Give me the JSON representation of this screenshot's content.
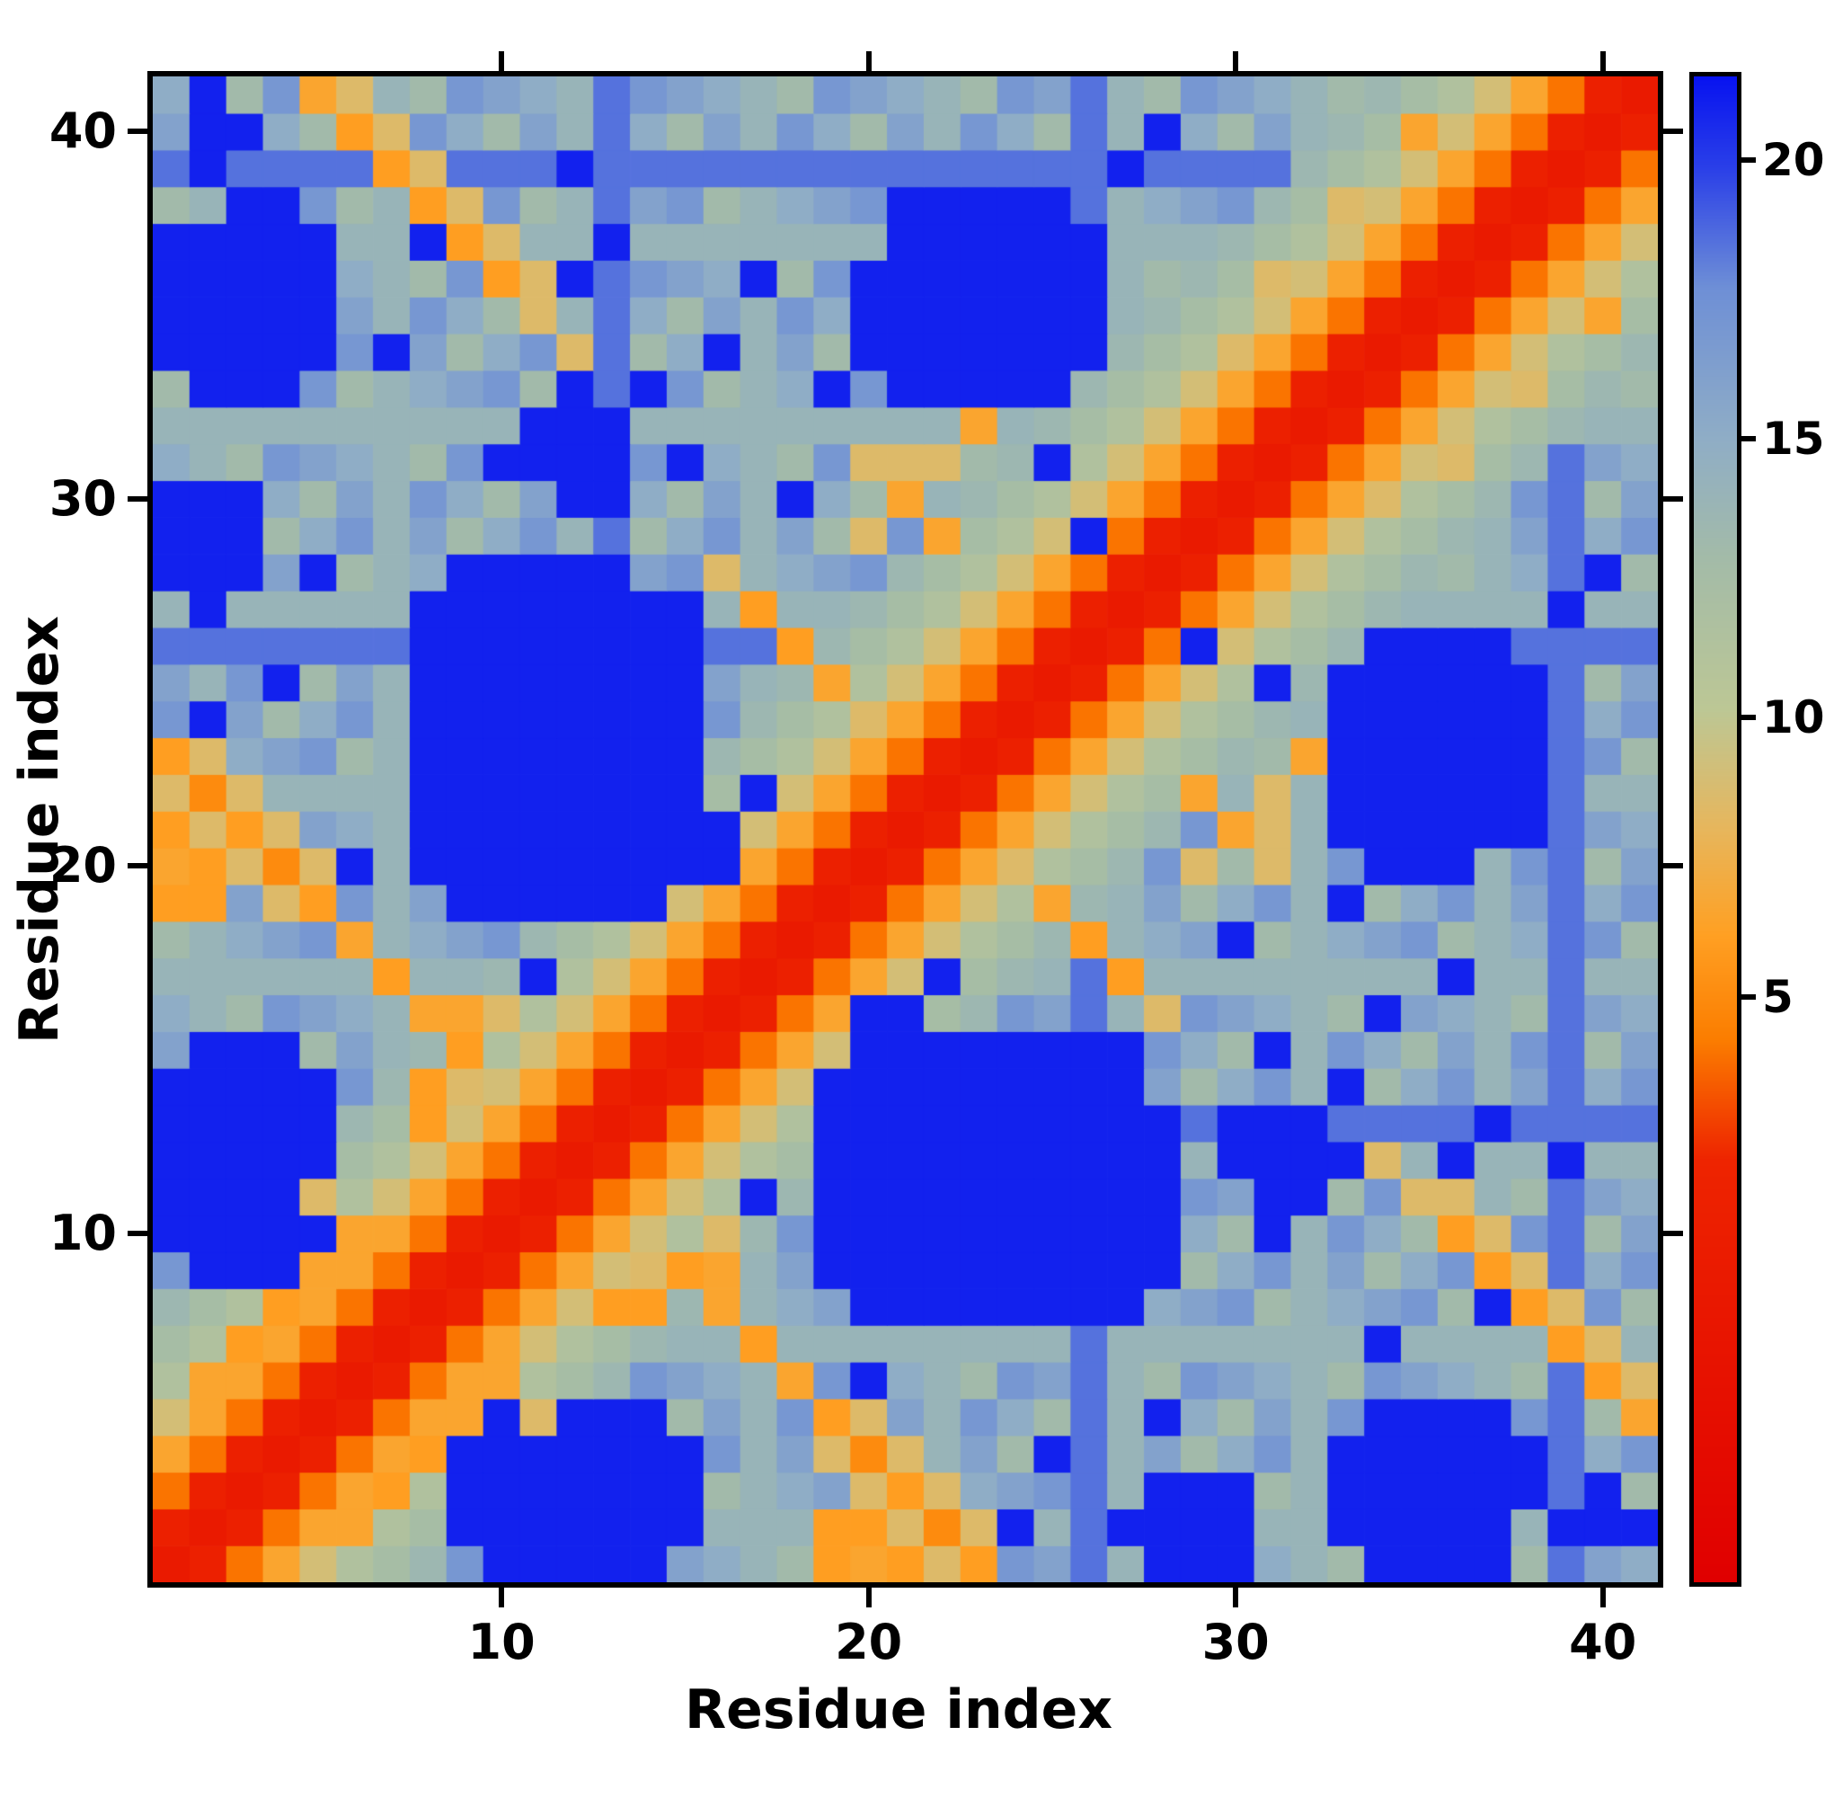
{
  "figure": {
    "background": "#ffffff"
  },
  "chart_data": {
    "type": "heatmap",
    "title": "",
    "xlabel": "Residue index",
    "ylabel": "Residue index",
    "n_residues": 41,
    "x_ticks": [
      10,
      20,
      30,
      40
    ],
    "y_ticks": [
      10,
      20,
      30,
      40
    ],
    "colorbar": {
      "ticks": [
        5,
        10,
        15,
        20
      ],
      "vmin": -5.5,
      "vmax": 21.5,
      "orientation": "vertical",
      "position": "right"
    },
    "colormap_stops": [
      [
        0.0,
        "#e00000"
      ],
      [
        0.28,
        "#ee2400"
      ],
      [
        0.36,
        "#fb7d00"
      ],
      [
        0.43,
        "#ffa023"
      ],
      [
        0.5,
        "#e7b65c"
      ],
      [
        0.58,
        "#bcc795"
      ],
      [
        0.68,
        "#a3bba8"
      ],
      [
        0.76,
        "#8fadc6"
      ],
      [
        0.86,
        "#6e8fd6"
      ],
      [
        0.94,
        "#2a3fe8"
      ],
      [
        1.0,
        "#0813f0"
      ]
    ],
    "matrix_spec": {
      "n": 41,
      "cap_value": 21,
      "far_value": 15,
      "base_by_separation": [
        0,
        1.2,
        4,
        6.5,
        9,
        11.5,
        12.5,
        13.5
      ],
      "noise": {
        "mod": 5,
        "offset": -2,
        "shift": 3
      },
      "light_blue_mod": 13,
      "light_blue_value": 18.5,
      "blue_blobs": [
        [
          9,
          15,
          1,
          5
        ],
        [
          8,
          15,
          19,
          28
        ],
        [
          1,
          5,
          33,
          38
        ],
        [
          33,
          38,
          20,
          26
        ],
        [
          39,
          41,
          1,
          3
        ],
        [
          27,
          31,
          1,
          3
        ],
        [
          30,
          33,
          11,
          13
        ]
      ],
      "blue_cells": [
        [
          2,
          24
        ],
        [
          4,
          25
        ],
        [
          5,
          28
        ],
        [
          6,
          20
        ],
        [
          7,
          34
        ],
        [
          8,
          37
        ],
        [
          9,
          26
        ],
        [
          10,
          31
        ],
        [
          12,
          36
        ],
        [
          13,
          30
        ],
        [
          14,
          33
        ],
        [
          16,
          34
        ],
        [
          17,
          36
        ],
        [
          18,
          30
        ],
        [
          22,
          31
        ],
        [
          24,
          36
        ],
        [
          25,
          31
        ],
        [
          27,
          39
        ],
        [
          28,
          40
        ],
        [
          15,
          31
        ],
        [
          3,
          29
        ],
        [
          19,
          33
        ],
        [
          26,
          29
        ],
        [
          11,
          17
        ],
        [
          23,
          32
        ],
        [
          16,
          21
        ],
        [
          17,
          22
        ],
        [
          16,
          20
        ],
        [
          37,
          13
        ],
        [
          39,
          12
        ]
      ],
      "orange_cells": [
        [
          1,
          23,
          6
        ],
        [
          2,
          22,
          5
        ],
        [
          3,
          21,
          6
        ],
        [
          4,
          20,
          5
        ],
        [
          5,
          19,
          6
        ],
        [
          6,
          18,
          6.5
        ],
        [
          7,
          17,
          6
        ],
        [
          8,
          16,
          6.5
        ],
        [
          1,
          22,
          8.5
        ],
        [
          2,
          23,
          8.5
        ],
        [
          3,
          22,
          8.5
        ],
        [
          2,
          21,
          8.5
        ],
        [
          3,
          20,
          8.5
        ],
        [
          4,
          21,
          8.5
        ],
        [
          5,
          20,
          8.5
        ],
        [
          4,
          19,
          8.5
        ],
        [
          1,
          21,
          6
        ],
        [
          2,
          20,
          6
        ],
        [
          1,
          19,
          6
        ],
        [
          1,
          20,
          6.5
        ],
        [
          2,
          19,
          6
        ],
        [
          36,
          10,
          6
        ],
        [
          37,
          9,
          6
        ],
        [
          38,
          8,
          6
        ],
        [
          39,
          7,
          6
        ],
        [
          40,
          6,
          6
        ],
        [
          41,
          5,
          6.5
        ],
        [
          37,
          10,
          8.5
        ],
        [
          38,
          9,
          8.5
        ],
        [
          39,
          8,
          8.5
        ],
        [
          40,
          7,
          8.5
        ],
        [
          41,
          6,
          8.5
        ],
        [
          36,
          11,
          8.5
        ],
        [
          35,
          11,
          8.5
        ],
        [
          34,
          12,
          8.5
        ],
        [
          16,
          28,
          8.5
        ],
        [
          17,
          27,
          6
        ],
        [
          18,
          26,
          6
        ],
        [
          19,
          25,
          6.5
        ],
        [
          20,
          24,
          8.5
        ],
        [
          20,
          31,
          8.5
        ],
        [
          21,
          30,
          6
        ],
        [
          22,
          29,
          6.5
        ],
        [
          21,
          31,
          8.5
        ],
        [
          8,
          13,
          6
        ],
        [
          8,
          14,
          6
        ],
        [
          9,
          15,
          6
        ],
        [
          9,
          16,
          6.5
        ],
        [
          9,
          14,
          8.5
        ],
        [
          10,
          16,
          8.5
        ],
        [
          29,
          20,
          8.5
        ],
        [
          30,
          21,
          6.5
        ],
        [
          31,
          22,
          8.5
        ],
        [
          32,
          23,
          6.5
        ],
        [
          33,
          38,
          8.5
        ],
        [
          35,
          40,
          6.5
        ],
        [
          31,
          36,
          8.5
        ],
        [
          30,
          34,
          8.5
        ],
        [
          2,
          6,
          6.5
        ],
        [
          3,
          7,
          6
        ],
        [
          4,
          8,
          6
        ],
        [
          5,
          9,
          6.5
        ],
        [
          6,
          10,
          6.5
        ],
        [
          5,
          11,
          8.5
        ]
      ]
    }
  }
}
